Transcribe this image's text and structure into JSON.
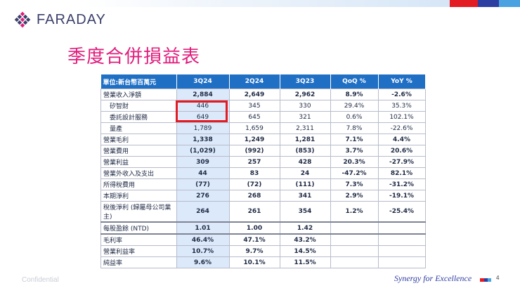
{
  "brand": {
    "name": "FARADAY",
    "logo_icon": "faraday-diamond-logo"
  },
  "colors": {
    "title": "#e01d7c",
    "header_bg": "#1f6fc5",
    "highlight_col": "#dbe9fa",
    "callout_box": "#e31b23"
  },
  "slide_title": "季度合併損益表",
  "table": {
    "headers": [
      "單位:新台幣百萬元",
      "3Q24",
      "2Q24",
      "3Q23",
      "QoQ %",
      "YoY %"
    ],
    "rows": [
      {
        "label": "營業收入淨額",
        "values": [
          "2,884",
          "2,649",
          "2,962",
          "8.9%",
          "-2.6%"
        ]
      },
      {
        "label": "矽智財",
        "values": [
          "446",
          "345",
          "330",
          "29.4%",
          "35.3%"
        ]
      },
      {
        "label": "委託設計服務",
        "values": [
          "649",
          "645",
          "321",
          "0.6%",
          "102.1%"
        ]
      },
      {
        "label": "量產",
        "values": [
          "1,789",
          "1,659",
          "2,311",
          "7.8%",
          "-22.6%"
        ]
      },
      {
        "label": "營業毛利",
        "values": [
          "1,338",
          "1,249",
          "1,281",
          "7.1%",
          "4.4%"
        ]
      },
      {
        "label": "營業費用",
        "values": [
          "(1,029)",
          "(992)",
          "(853)",
          "3.7%",
          "20.6%"
        ]
      },
      {
        "label": "營業利益",
        "values": [
          "309",
          "257",
          "428",
          "20.3%",
          "-27.9%"
        ]
      },
      {
        "label": "營業外收入及支出",
        "values": [
          "44",
          "83",
          "24",
          "-47.2%",
          "82.1%"
        ]
      },
      {
        "label": "所得稅費用",
        "values": [
          "(77)",
          "(72)",
          "(111)",
          "7.3%",
          "-31.2%"
        ]
      },
      {
        "label": "本期淨利",
        "values": [
          "276",
          "268",
          "341",
          "2.9%",
          "-19.1%"
        ]
      },
      {
        "label": "稅後淨利 (歸屬母公司業主)",
        "values": [
          "264",
          "261",
          "354",
          "1.2%",
          "-25.4%"
        ]
      },
      {
        "label": "每股盈餘 (NTD)",
        "values": [
          "1.01",
          "1.00",
          "1.42",
          "",
          ""
        ]
      },
      {
        "label": "毛利率",
        "values": [
          "46.4%",
          "47.1%",
          "43.2%",
          "",
          ""
        ]
      },
      {
        "label": "營業利益率",
        "values": [
          "10.7%",
          "9.7%",
          "14.5%",
          "",
          ""
        ]
      },
      {
        "label": "純益率",
        "values": [
          "9.6%",
          "10.1%",
          "11.5%",
          "",
          ""
        ]
      }
    ]
  },
  "footer": {
    "confidential": "Confidential",
    "slogan": "Synergy for Excellence",
    "page_number": "4"
  }
}
